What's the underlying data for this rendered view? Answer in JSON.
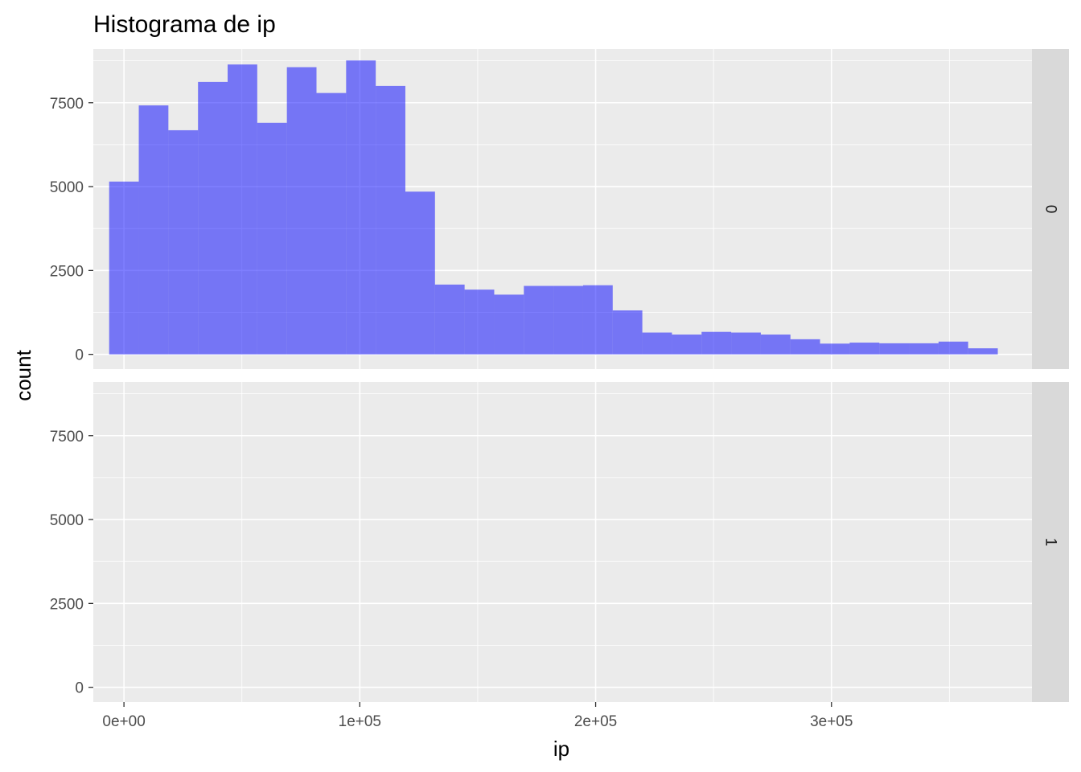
{
  "chart_data": {
    "type": "bar",
    "title": "Histograma de ip",
    "xlabel": "ip",
    "ylabel": "count",
    "xlim": [
      -13000,
      385000
    ],
    "ylim": [
      -440,
      9100
    ],
    "x_ticks": [
      0,
      100000,
      200000,
      300000
    ],
    "x_tick_labels": [
      "0e+00",
      "1e+05",
      "2e+05",
      "3e+05"
    ],
    "y_ticks": [
      0,
      2500,
      5000,
      7500
    ],
    "y_tick_labels": [
      "0",
      "2500",
      "5000",
      "7500"
    ],
    "bin_width": 12560,
    "bar_color": "#0000ff",
    "bar_opacity": 0.5,
    "panel_background": "#ebebeb",
    "strip_background": "#d9d9d9",
    "grid_color": "#ffffff",
    "grid": true,
    "facets": [
      {
        "label": "0",
        "bins": [
          {
            "x": 0,
            "count": 5150
          },
          {
            "x": 12560,
            "count": 7420
          },
          {
            "x": 25120,
            "count": 6680
          },
          {
            "x": 37680,
            "count": 8120
          },
          {
            "x": 50240,
            "count": 8640
          },
          {
            "x": 62800,
            "count": 6900
          },
          {
            "x": 75360,
            "count": 8560
          },
          {
            "x": 87920,
            "count": 7790
          },
          {
            "x": 100480,
            "count": 8760
          },
          {
            "x": 113040,
            "count": 8000
          },
          {
            "x": 125600,
            "count": 4850
          },
          {
            "x": 138160,
            "count": 2080
          },
          {
            "x": 150720,
            "count": 1930
          },
          {
            "x": 163280,
            "count": 1780
          },
          {
            "x": 175840,
            "count": 2040
          },
          {
            "x": 188400,
            "count": 2040
          },
          {
            "x": 200960,
            "count": 2060
          },
          {
            "x": 213520,
            "count": 1310
          },
          {
            "x": 226080,
            "count": 650
          },
          {
            "x": 238640,
            "count": 590
          },
          {
            "x": 251200,
            "count": 670
          },
          {
            "x": 263760,
            "count": 650
          },
          {
            "x": 276320,
            "count": 590
          },
          {
            "x": 288880,
            "count": 450
          },
          {
            "x": 301440,
            "count": 320
          },
          {
            "x": 314000,
            "count": 350
          },
          {
            "x": 326560,
            "count": 330
          },
          {
            "x": 339120,
            "count": 330
          },
          {
            "x": 351680,
            "count": 380
          },
          {
            "x": 364240,
            "count": 180
          }
        ]
      },
      {
        "label": "1",
        "bins": []
      }
    ]
  }
}
